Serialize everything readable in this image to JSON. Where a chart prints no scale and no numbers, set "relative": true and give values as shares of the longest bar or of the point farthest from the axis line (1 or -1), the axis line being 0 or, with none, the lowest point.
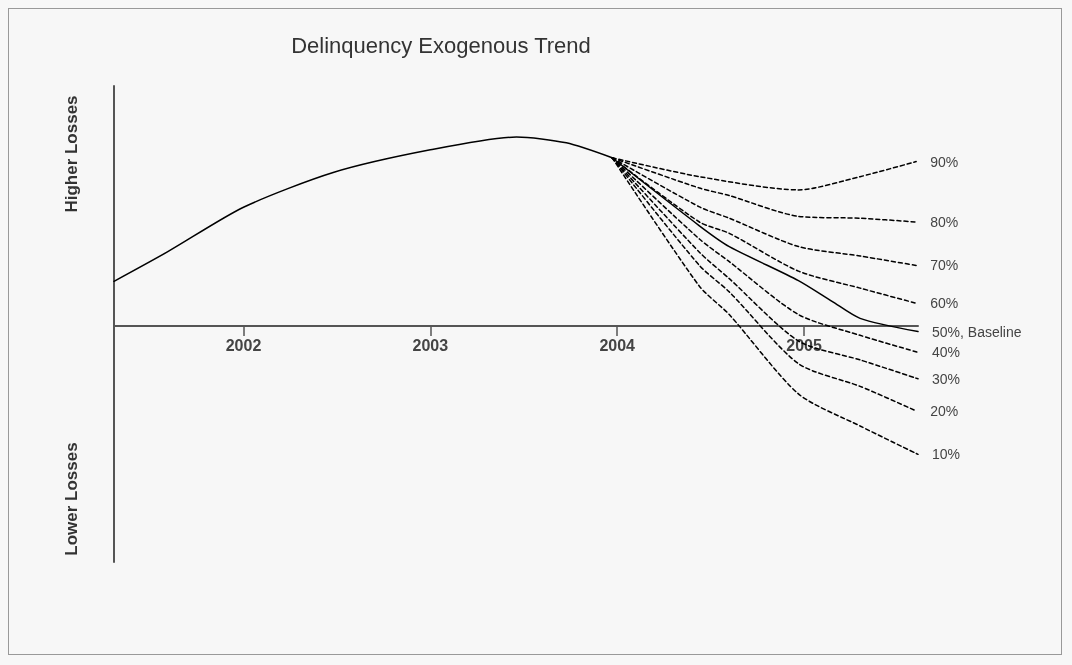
{
  "chart_data": {
    "type": "line",
    "title": "Delinquency Exogenous Trend",
    "ylabel": "Higher Losses",
    "annotations": [
      "Lower Losses"
    ],
    "relative": true,
    "xlim": [
      2001.307,
      2005.61
    ],
    "xticks": [
      2002,
      2003,
      2004,
      2005
    ],
    "grid": false,
    "legend": false,
    "marker": "none",
    "series": [
      {
        "color": "#000000",
        "line_style": "solid",
        "x": [
          2001.307,
          2001.595,
          2002,
          2002.48,
          2003,
          2003.461,
          2003.728,
          2003.973
        ],
        "values": [
          0.236,
          0.393,
          0.628,
          0.812,
          0.932,
          1.0,
          0.969,
          0.89
        ]
      },
      {
        "name": "90%",
        "color": "#000000",
        "line_style": "dashed",
        "x": [
          2003.973,
          2004.44,
          2004.97,
          2005.3,
          2005.6
        ],
        "values": [
          0.89,
          0.79,
          0.72,
          0.79,
          0.87
        ]
      },
      {
        "name": "80%",
        "color": "#000000",
        "line_style": "dashed",
        "x": [
          2003.973,
          2004.44,
          2004.6,
          2004.97,
          2005.3,
          2005.6
        ],
        "values": [
          0.89,
          0.73,
          0.69,
          0.58,
          0.57,
          0.55
        ]
      },
      {
        "name": "70%",
        "color": "#000000",
        "line_style": "dashed",
        "x": [
          2003.973,
          2004.44,
          2004.6,
          2004.97,
          2005.3,
          2005.6
        ],
        "values": [
          0.89,
          0.63,
          0.57,
          0.42,
          0.37,
          0.32
        ]
      },
      {
        "name": "60%",
        "color": "#000000",
        "line_style": "dashed",
        "x": [
          2003.973,
          2004.44,
          2004.6,
          2004.97,
          2005.3,
          2005.6
        ],
        "values": [
          0.89,
          0.55,
          0.49,
          0.29,
          0.2,
          0.12
        ]
      },
      {
        "name": "50%, Baseline",
        "color": "#000000",
        "line_style": "solid",
        "x": [
          2003.973,
          2004.44,
          2004.6,
          2004.97,
          2005.15,
          2005.3,
          2005.61
        ],
        "values": [
          0.89,
          0.53,
          0.42,
          0.24,
          0.13,
          0.04,
          -0.03
        ]
      },
      {
        "name": "40%",
        "color": "#000000",
        "line_style": "dashed",
        "x": [
          2003.973,
          2004.44,
          2004.6,
          2004.97,
          2005.3,
          2005.61
        ],
        "values": [
          0.89,
          0.46,
          0.34,
          0.06,
          -0.05,
          -0.14
        ]
      },
      {
        "name": "30%",
        "color": "#000000",
        "line_style": "dashed",
        "x": [
          2003.973,
          2004.44,
          2004.6,
          2004.97,
          2005.3,
          2005.61
        ],
        "values": [
          0.89,
          0.39,
          0.25,
          -0.08,
          -0.18,
          -0.28
        ]
      },
      {
        "name": "20%",
        "color": "#000000",
        "line_style": "dashed",
        "x": [
          2003.973,
          2004.44,
          2004.6,
          2004.97,
          2005.3,
          2005.6
        ],
        "values": [
          0.89,
          0.32,
          0.18,
          -0.2,
          -0.32,
          -0.45
        ]
      },
      {
        "name": "10%",
        "color": "#000000",
        "line_style": "dashed",
        "x": [
          2003.973,
          2004.44,
          2004.6,
          2004.97,
          2005.3,
          2005.61
        ],
        "values": [
          0.89,
          0.21,
          0.06,
          -0.36,
          -0.53,
          -0.68
        ]
      }
    ]
  }
}
